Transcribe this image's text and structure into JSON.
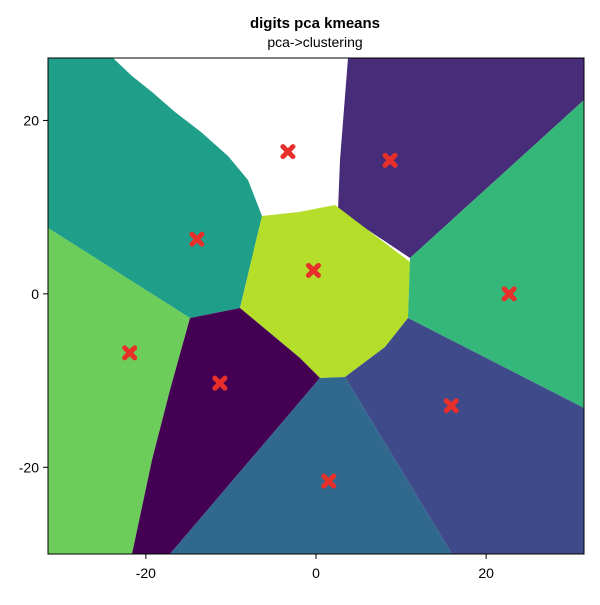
{
  "chart_data": {
    "type": "scatter",
    "title": "digits pca kmeans",
    "subtitle": "pca->clustering",
    "xlabel": "",
    "ylabel": "",
    "xlim": [
      -31.5,
      31.5
    ],
    "ylim": [
      -30.0,
      27.2
    ],
    "xticks": [
      -20,
      0,
      20
    ],
    "yticks": [
      -20,
      0,
      20
    ],
    "xtick_labels": [
      "-20",
      "0",
      "20"
    ],
    "ytick_labels": [
      "-20",
      "0",
      "20"
    ],
    "grid": true,
    "colors": {
      "grid": "#e4e4e4",
      "marker": "#e8302a",
      "axis": "#000000",
      "empty_region": "#ffffff"
    },
    "regions": [
      {
        "id": "white",
        "color": "#ffffff"
      },
      {
        "id": "purple",
        "color": "#472c7a"
      },
      {
        "id": "teal",
        "color": "#1f9e89"
      },
      {
        "id": "yellowgreen",
        "color": "#b5de2b"
      },
      {
        "id": "green",
        "color": "#35b779"
      },
      {
        "id": "lightgreen",
        "color": "#6ccd5a"
      },
      {
        "id": "darkpurple",
        "color": "#440154"
      },
      {
        "id": "indigo",
        "color": "#3e4a89"
      },
      {
        "id": "blueteal",
        "color": "#31688e"
      }
    ],
    "centroids": [
      {
        "x": -3.3,
        "y": 16.4
      },
      {
        "x": 8.7,
        "y": 15.4
      },
      {
        "x": -14.0,
        "y": 6.3
      },
      {
        "x": -0.3,
        "y": 2.7
      },
      {
        "x": 22.7,
        "y": 0.0
      },
      {
        "x": -21.9,
        "y": -6.8
      },
      {
        "x": -11.3,
        "y": -10.3
      },
      {
        "x": 15.9,
        "y": -12.9
      },
      {
        "x": 1.5,
        "y": -21.6
      }
    ]
  }
}
